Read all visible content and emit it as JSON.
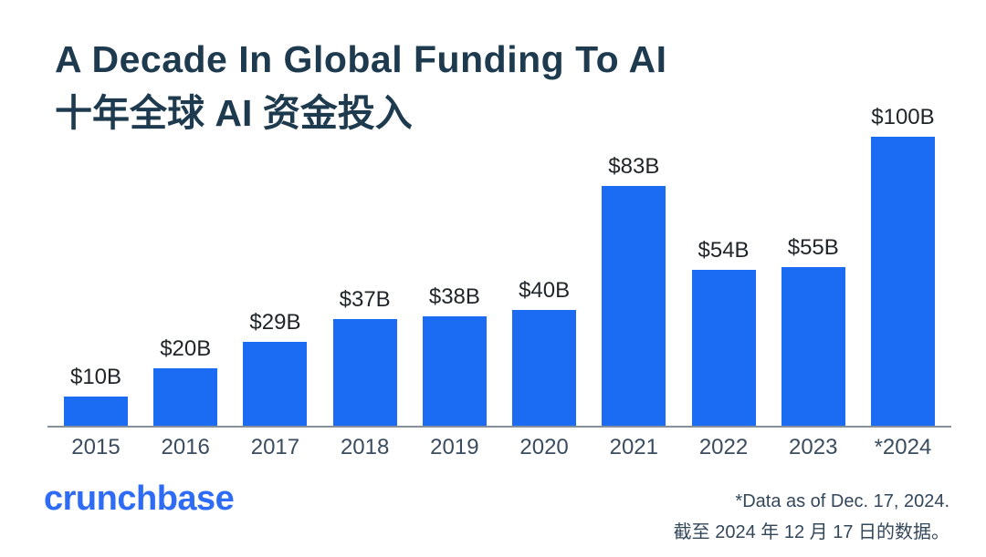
{
  "page": {
    "background": "#ffffff"
  },
  "header": {
    "title_en": "A Decade In Global Funding To AI",
    "title_zh": "十年全球 AI 资金投入"
  },
  "chart_data": {
    "type": "bar",
    "title": "A Decade In Global Funding To AI",
    "subtitle": "十年全球 AI 资金投入",
    "categories": [
      "2015",
      "2016",
      "2017",
      "2018",
      "2019",
      "2020",
      "2021",
      "2022",
      "2023",
      "*2024"
    ],
    "values": [
      10,
      20,
      29,
      37,
      38,
      40,
      83,
      54,
      55,
      100
    ],
    "value_labels": [
      "$10B",
      "$20B",
      "$29B",
      "$37B",
      "$38B",
      "$40B",
      "$83B",
      "$54B",
      "$55B",
      "$100B"
    ],
    "unit": "billions USD",
    "xlabel": "",
    "ylabel": "",
    "ylim": [
      0,
      100
    ],
    "grid": false,
    "legend": "none",
    "bar_color": "#1b6cf2",
    "axis_line_color": "#85909a"
  },
  "footer": {
    "logo_text": "crunchbase",
    "note_en": "*Data as of Dec. 17, 2024.",
    "note_zh": "截至 2024 年 12 月 17 日的数据。"
  },
  "colors": {
    "title": "#1e3a4e",
    "value_label": "#1f2428",
    "tick_label": "#3a4c5e",
    "logo": "#2e6cf5",
    "footnote": "#33475b"
  }
}
